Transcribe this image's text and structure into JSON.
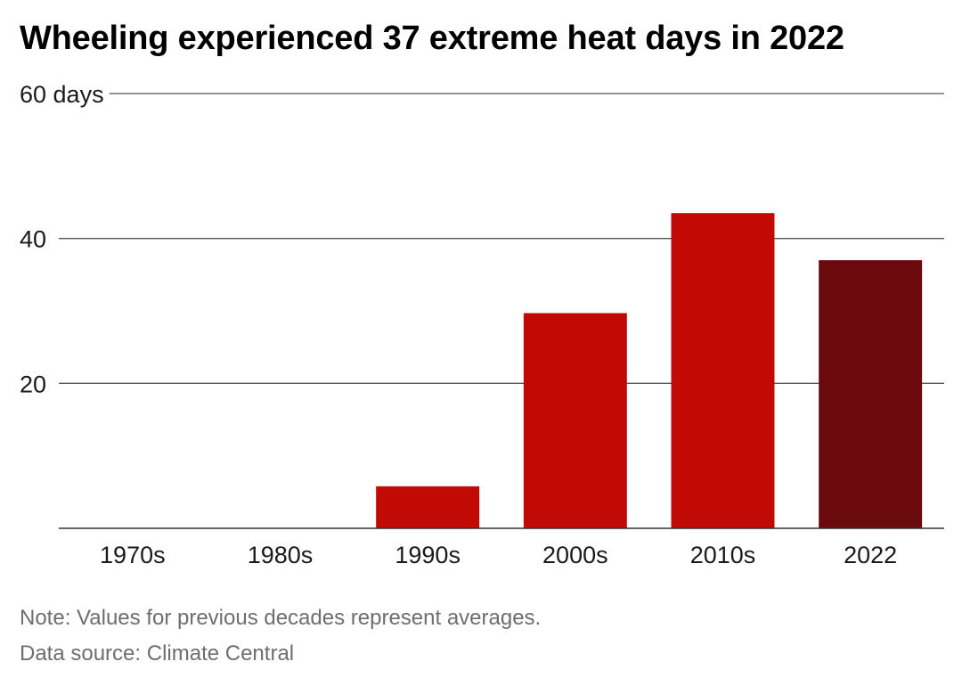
{
  "title": "Wheeling experienced 37 extreme heat days in 2022",
  "notes": {
    "note": "Note: Values for previous decades represent averages.",
    "source": "Data source: Climate Central"
  },
  "colors": {
    "decade_bar": "#c20a05",
    "highlight_bar": "#6b0a0c",
    "gridline": "#555555",
    "baseline": "#333333"
  },
  "chart_data": {
    "type": "bar",
    "title": "Wheeling experienced 37 extreme heat days in 2022",
    "categories": [
      "1970s",
      "1980s",
      "1990s",
      "2000s",
      "2010s",
      "2022"
    ],
    "values": [
      0,
      0,
      5.8,
      29.7,
      43.5,
      37
    ],
    "highlight_category": "2022",
    "ylim": [
      0,
      60
    ],
    "yticks": [
      {
        "value": 20,
        "label": "20"
      },
      {
        "value": 40,
        "label": "40"
      },
      {
        "value": 60,
        "label": "60 days"
      }
    ],
    "grid": true,
    "legend": "none"
  }
}
